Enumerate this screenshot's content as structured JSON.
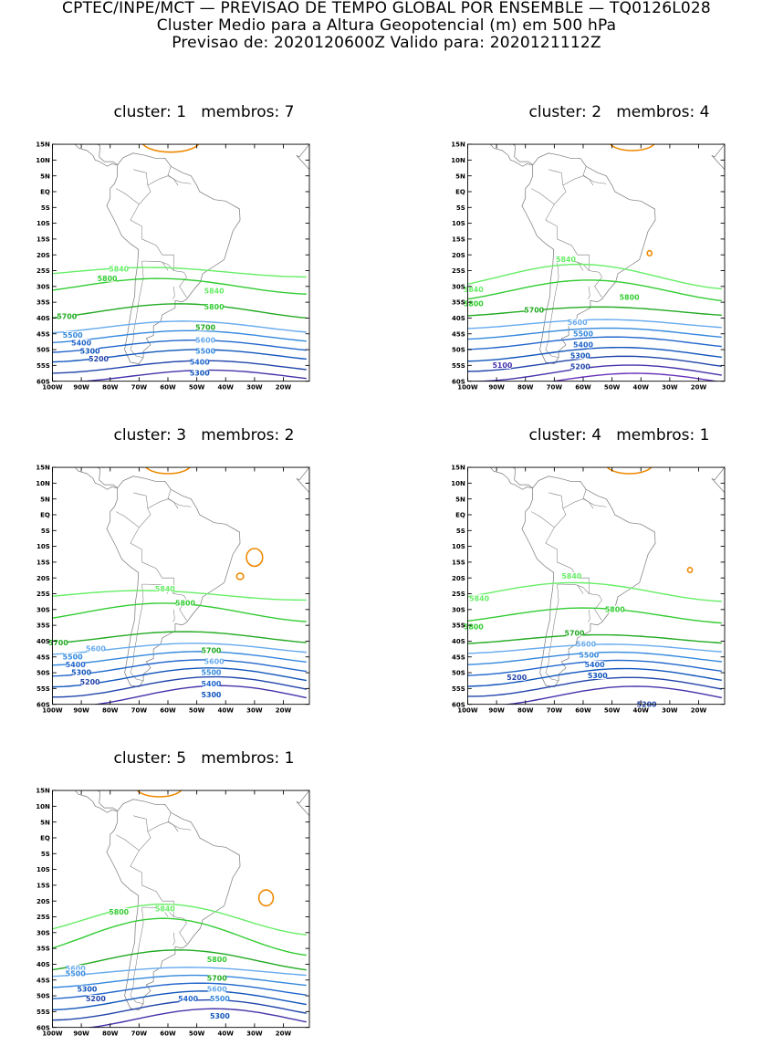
{
  "header": {
    "line1": "CPTEC/INPE/MCT — PREVISAO DE TEMPO GLOBAL POR ENSEMBLE — TQ0126L028",
    "line2": "Cluster Medio para a Altura Geopotencial (m) em 500 hPa",
    "line3": "Previsao de: 2020120600Z    Valido para: 2020121112Z"
  },
  "axes": {
    "lat_ticks": [
      "15N",
      "10N",
      "5N",
      "EQ",
      "5S",
      "10S",
      "15S",
      "20S",
      "25S",
      "30S",
      "35S",
      "40S",
      "45S",
      "50S",
      "55S",
      "60S"
    ],
    "lon_ticks": [
      "100W",
      "90W",
      "80W",
      "70W",
      "60W",
      "50W",
      "40W",
      "30W",
      "20W"
    ]
  },
  "colors": {
    "c5840": "#66ee66",
    "c5800": "#33cc33",
    "c5700": "#22aa22",
    "c5600": "#66aaee",
    "c5500": "#3388dd",
    "c5400": "#2266cc",
    "c5300": "#1155bb",
    "c5200": "#2244aa",
    "c5100": "#4433aa",
    "c5000": "#6633bb",
    "high": "#ee8800",
    "coast": "#777777"
  },
  "panels": [
    {
      "cluster_label": "cluster:",
      "cluster": "1",
      "members_label": "membros:",
      "members": "7",
      "labels": [
        {
          "text": "5840",
          "lon": -77,
          "lat": -24.5,
          "level": "c5840"
        },
        {
          "text": "5840",
          "lon": -44,
          "lat": -31.5,
          "level": "c5840"
        },
        {
          "text": "5800",
          "lon": -81,
          "lat": -27.5,
          "level": "c5800"
        },
        {
          "text": "5800",
          "lon": -44,
          "lat": -36.5,
          "level": "c5800"
        },
        {
          "text": "5700",
          "lon": -95,
          "lat": -39.5,
          "level": "c5700"
        },
        {
          "text": "5700",
          "lon": -47,
          "lat": -43,
          "level": "c5700"
        },
        {
          "text": "5600",
          "lon": -47,
          "lat": -47,
          "level": "c5600"
        },
        {
          "text": "5500",
          "lon": -93,
          "lat": -45.5,
          "level": "c5500"
        },
        {
          "text": "5500",
          "lon": -47,
          "lat": -50.5,
          "level": "c5500"
        },
        {
          "text": "5400",
          "lon": -90,
          "lat": -48,
          "level": "c5400"
        },
        {
          "text": "5400",
          "lon": -49,
          "lat": -54,
          "level": "c5400"
        },
        {
          "text": "5300",
          "lon": -87,
          "lat": -50.5,
          "level": "c5300"
        },
        {
          "text": "5300",
          "lon": -49,
          "lat": -57.5,
          "level": "c5300"
        },
        {
          "text": "5200",
          "lon": -84,
          "lat": -53,
          "level": "c5200"
        }
      ]
    },
    {
      "cluster_label": "cluster:",
      "cluster": "2",
      "members_label": "membros:",
      "members": "4",
      "labels": [
        {
          "text": "5840",
          "lon": -66,
          "lat": -21.5,
          "level": "c5840"
        },
        {
          "text": "5840",
          "lon": -98,
          "lat": -31,
          "level": "c5840"
        },
        {
          "text": "5800",
          "lon": -98,
          "lat": -35.5,
          "level": "c5800"
        },
        {
          "text": "5800",
          "lon": -44,
          "lat": -33.5,
          "level": "c5800"
        },
        {
          "text": "5700",
          "lon": -77,
          "lat": -37.5,
          "level": "c5700"
        },
        {
          "text": "5600",
          "lon": -62,
          "lat": -41.5,
          "level": "c5600"
        },
        {
          "text": "5500",
          "lon": -60,
          "lat": -45,
          "level": "c5500"
        },
        {
          "text": "5400",
          "lon": -60,
          "lat": -48.5,
          "level": "c5400"
        },
        {
          "text": "5300",
          "lon": -61,
          "lat": -52,
          "level": "c5300"
        },
        {
          "text": "5200",
          "lon": -61,
          "lat": -55.5,
          "level": "c5200"
        },
        {
          "text": "5100",
          "lon": -88,
          "lat": -55,
          "level": "c5100"
        }
      ]
    },
    {
      "cluster_label": "cluster:",
      "cluster": "3",
      "members_label": "membros:",
      "members": "2",
      "labels": [
        {
          "text": "5840",
          "lon": -61,
          "lat": -23.5,
          "level": "c5840"
        },
        {
          "text": "5800",
          "lon": -54,
          "lat": -28,
          "level": "c5800"
        },
        {
          "text": "5700",
          "lon": -98,
          "lat": -40.5,
          "level": "c5700"
        },
        {
          "text": "5700",
          "lon": -45,
          "lat": -43,
          "level": "c5700"
        },
        {
          "text": "5600",
          "lon": -85,
          "lat": -42.5,
          "level": "c5600"
        },
        {
          "text": "5600",
          "lon": -44,
          "lat": -46.5,
          "level": "c5600"
        },
        {
          "text": "5500",
          "lon": -93,
          "lat": -45,
          "level": "c5500"
        },
        {
          "text": "5500",
          "lon": -45,
          "lat": -50,
          "level": "c5500"
        },
        {
          "text": "5400",
          "lon": -92,
          "lat": -47.5,
          "level": "c5400"
        },
        {
          "text": "5400",
          "lon": -45,
          "lat": -53.5,
          "level": "c5400"
        },
        {
          "text": "5300",
          "lon": -90,
          "lat": -50,
          "level": "c5300"
        },
        {
          "text": "5300",
          "lon": -45,
          "lat": -57,
          "level": "c5300"
        },
        {
          "text": "5200",
          "lon": -87,
          "lat": -53,
          "level": "c5200"
        }
      ]
    },
    {
      "cluster_label": "cluster:",
      "cluster": "4",
      "members_label": "membros:",
      "members": "1",
      "labels": [
        {
          "text": "5840",
          "lon": -64,
          "lat": -19.5,
          "level": "c5840"
        },
        {
          "text": "5840",
          "lon": -96,
          "lat": -26.5,
          "level": "c5840"
        },
        {
          "text": "5800",
          "lon": -98,
          "lat": -35.5,
          "level": "c5800"
        },
        {
          "text": "5800",
          "lon": -49,
          "lat": -30,
          "level": "c5800"
        },
        {
          "text": "5700",
          "lon": -63,
          "lat": -37.5,
          "level": "c5700"
        },
        {
          "text": "5600",
          "lon": -59,
          "lat": -41,
          "level": "c5600"
        },
        {
          "text": "5500",
          "lon": -58,
          "lat": -44.5,
          "level": "c5500"
        },
        {
          "text": "5400",
          "lon": -56,
          "lat": -47.5,
          "level": "c5400"
        },
        {
          "text": "5300",
          "lon": -55,
          "lat": -51,
          "level": "c5300"
        },
        {
          "text": "5200",
          "lon": -83,
          "lat": -51.5,
          "level": "c5200"
        },
        {
          "text": "5200",
          "lon": -38,
          "lat": -60,
          "level": "c5200"
        }
      ]
    },
    {
      "cluster_label": "cluster:",
      "cluster": "5",
      "members_label": "membros:",
      "members": "1",
      "labels": [
        {
          "text": "5840",
          "lon": -61,
          "lat": -22.5,
          "level": "c5840"
        },
        {
          "text": "5800",
          "lon": -77,
          "lat": -23.5,
          "level": "c5800"
        },
        {
          "text": "5800",
          "lon": -43,
          "lat": -38.5,
          "level": "c5800"
        },
        {
          "text": "5700",
          "lon": -43,
          "lat": -44.5,
          "level": "c5700"
        },
        {
          "text": "5600",
          "lon": -92,
          "lat": -41.5,
          "level": "c5600"
        },
        {
          "text": "5600",
          "lon": -43,
          "lat": -48,
          "level": "c5600"
        },
        {
          "text": "5500",
          "lon": -92,
          "lat": -43,
          "level": "c5500"
        },
        {
          "text": "5500",
          "lon": -42,
          "lat": -51,
          "level": "c5500"
        },
        {
          "text": "5400",
          "lon": -53,
          "lat": -51,
          "level": "c5400"
        },
        {
          "text": "5300",
          "lon": -88,
          "lat": -48,
          "level": "c5300"
        },
        {
          "text": "5300",
          "lon": -42,
          "lat": -56.5,
          "level": "c5300"
        },
        {
          "text": "5200",
          "lon": -85,
          "lat": -51,
          "level": "c5200"
        }
      ]
    }
  ]
}
